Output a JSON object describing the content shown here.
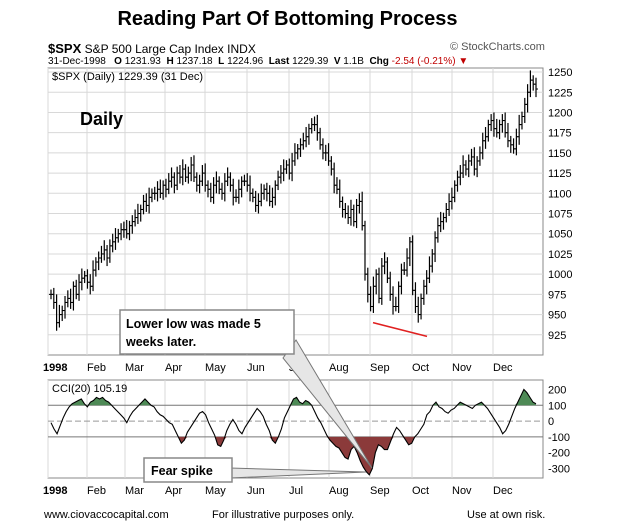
{
  "title": "Reading Part Of Bottoming Process",
  "header": {
    "symbol": "$SPX",
    "name": "S&P 500 Large Cap Index",
    "exchange": "INDX",
    "brand": "© StockCharts.com",
    "date": "31-Dec-1998",
    "open_label": "O",
    "open": "1231.93",
    "high_label": "H",
    "high": "1237.18",
    "low_label": "L",
    "low": "1224.96",
    "last_label": "Last",
    "last": "1229.39",
    "volume_label": "V",
    "volume": "1.1B",
    "change_label": "Chg",
    "change": "-2.54 (-0.21%)"
  },
  "footer": {
    "website": "www.ciovaccocapital.com",
    "disclaimer": "For illustrative purposes only.",
    "risk": "Use at own risk."
  },
  "colors": {
    "price_bar": "#000000",
    "cci_positive_fill": "#4e8a56",
    "cci_negative_fill": "#8b3a3a",
    "low_line": "#e02020",
    "grid": "#d8d8d8"
  },
  "chart_data": [
    {
      "type": "ohlc",
      "legend": "$SPX (Daily) 1229.39 (31 Dec)",
      "label": "Daily",
      "ylim": [
        900,
        1255
      ],
      "y_scale": "linear",
      "y_ticks": [
        925,
        950,
        975,
        1000,
        1025,
        1050,
        1075,
        1100,
        1125,
        1150,
        1175,
        1200,
        1225,
        1250
      ],
      "x_ticks": [
        "1998",
        "Feb",
        "Mar",
        "Apr",
        "May",
        "Jun",
        "Jul",
        "Aug",
        "Sep",
        "Oct",
        "Nov",
        "Dec"
      ],
      "grid": true,
      "series": [
        {
          "closes": [
            975,
            965,
            940,
            950,
            955,
            965,
            970,
            965,
            985,
            975,
            990,
            995,
            998,
            990,
            985,
            1005,
            1015,
            1020,
            1025,
            1030,
            1020,
            1035,
            1040,
            1045,
            1050,
            1055,
            1055,
            1050,
            1060,
            1065,
            1070,
            1075,
            1080,
            1090,
            1085,
            1095,
            1100,
            1100,
            1105,
            1100,
            1110,
            1105,
            1115,
            1120,
            1110,
            1125,
            1120,
            1130,
            1120,
            1125,
            1135,
            1120,
            1110,
            1115,
            1125,
            1110,
            1105,
            1095,
            1110,
            1115,
            1105,
            1100,
            1115,
            1120,
            1110,
            1095,
            1095,
            1105,
            1115,
            1115,
            1110,
            1100,
            1095,
            1085,
            1090,
            1100,
            1105,
            1100,
            1090,
            1095,
            1110,
            1120,
            1125,
            1130,
            1135,
            1125,
            1140,
            1150,
            1155,
            1160,
            1165,
            1170,
            1180,
            1185,
            1185,
            1175,
            1160,
            1150,
            1150,
            1140,
            1130,
            1110,
            1105,
            1090,
            1080,
            1075,
            1070,
            1080,
            1065,
            1085,
            1090,
            1060,
            1000,
            975,
            960,
            985,
            1000,
            970,
            1010,
            1015,
            995,
            975,
            960,
            960,
            985,
            1005,
            1005,
            1020,
            1040,
            980,
            960,
            950,
            970,
            985,
            995,
            1010,
            1025,
            1045,
            1060,
            1065,
            1070,
            1080,
            1090,
            1095,
            1110,
            1120,
            1125,
            1135,
            1130,
            1140,
            1145,
            1130,
            1140,
            1150,
            1165,
            1170,
            1185,
            1190,
            1180,
            1175,
            1185,
            1190,
            1175,
            1165,
            1160,
            1155,
            1170,
            1185,
            1195,
            1210,
            1225,
            1240,
            1235,
            1229
          ]
        }
      ],
      "annotations": [
        {
          "text": "Lower low was made 5 weeks later."
        },
        {
          "type": "line",
          "from": [
            "Sep",
            940
          ],
          "to": [
            "Oct",
            923
          ]
        }
      ]
    },
    {
      "type": "area",
      "legend": "CCI(20) 105.19",
      "ylim": [
        -360,
        260
      ],
      "y_ticks": [
        -300,
        -200,
        -100,
        0,
        100,
        200
      ],
      "x_ticks": [
        "1998",
        "Feb",
        "Mar",
        "Apr",
        "May",
        "Jun",
        "Jul",
        "Aug",
        "Sep",
        "Oct",
        "Nov",
        "Dec"
      ],
      "reference_lines": [
        100,
        -100
      ],
      "zero_line": 0,
      "series": [
        {
          "name": "CCI(20)",
          "values": [
            -10,
            -50,
            -80,
            -30,
            20,
            60,
            90,
            110,
            120,
            130,
            140,
            110,
            90,
            120,
            130,
            150,
            140,
            150,
            130,
            120,
            100,
            80,
            60,
            40,
            20,
            -10,
            30,
            60,
            80,
            100,
            120,
            140,
            120,
            100,
            90,
            60,
            40,
            30,
            10,
            -10,
            -20,
            -60,
            -100,
            -140,
            -120,
            -70,
            -40,
            -10,
            20,
            50,
            60,
            40,
            -10,
            -50,
            -90,
            -150,
            -160,
            -120,
            -60,
            -20,
            10,
            -20,
            -60,
            -80,
            -40,
            -10,
            20,
            50,
            80,
            60,
            30,
            -20,
            -60,
            -120,
            -140,
            -100,
            -50,
            20,
            60,
            100,
            140,
            150,
            120,
            110,
            130,
            120,
            100,
            60,
            20,
            -10,
            -50,
            -90,
            -120,
            -140,
            -160,
            -170,
            -200,
            -230,
            -240,
            -180,
            -160,
            -200,
            -250,
            -290,
            -320,
            -340,
            -300,
            -200,
            -150,
            -160,
            -180,
            -180,
            -130,
            -80,
            -40,
            -60,
            -90,
            -120,
            -150,
            -140,
            -100,
            -80,
            -50,
            -20,
            40,
            60,
            100,
            120,
            90,
            80,
            60,
            50,
            70,
            80,
            100,
            120,
            110,
            100,
            90,
            80,
            100,
            110,
            120,
            100,
            80,
            50,
            20,
            -10,
            -40,
            -80,
            -60,
            -20,
            30,
            80,
            120,
            160,
            200,
            180,
            150,
            120,
            110
          ]
        }
      ],
      "annotations": [
        {
          "text": "Fear spike"
        }
      ]
    }
  ]
}
